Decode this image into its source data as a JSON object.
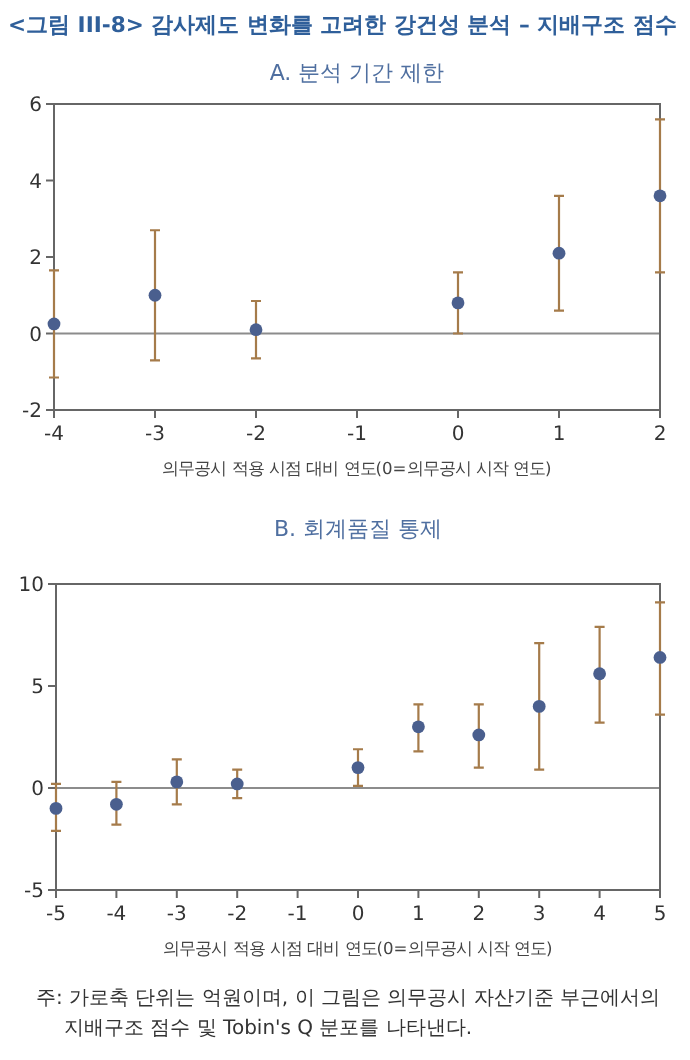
{
  "chart_data": [
    {
      "type": "scatter",
      "title": "<그림 III-8> 감사제도 변화를 고려한 강건성 분석 – 지배구조 점수",
      "subtitle": "A. 분석 기간 제한",
      "xlabel": "의무공시 적용 시점 대비 연도(0=의무공시 시작 연도)",
      "x": [
        -4,
        -3,
        -2,
        0,
        1,
        2
      ],
      "series": [
        {
          "color": "#4a5f8e",
          "values": [
            0.25,
            1.0,
            0.1,
            0.8,
            2.1,
            3.6
          ],
          "errors": [
            [
              -1.15,
              1.65
            ],
            [
              -0.7,
              2.7
            ],
            [
              -0.65,
              0.85
            ],
            [
              0.0,
              1.6
            ],
            [
              0.6,
              3.6
            ],
            [
              1.6,
              5.6
            ]
          ]
        }
      ],
      "xlim": [
        -4,
        2
      ],
      "xticks": [
        -4,
        -3,
        -2,
        -1,
        0,
        1,
        2
      ],
      "ylim": [
        -2,
        6
      ],
      "yticks": [
        -2,
        0,
        2,
        4,
        6
      ],
      "marker": "circle",
      "ref_lines": [
        {
          "axis": "y",
          "value": 0,
          "color": "#8c8c8c"
        }
      ]
    },
    {
      "type": "scatter",
      "subtitle": "B. 회계품질 통제",
      "xlabel": "의무공시 적용 시점 대비 연도(0=의무공시 시작 연도)",
      "x": [
        -5,
        -4,
        -3,
        -2,
        0,
        1,
        2,
        3,
        4,
        5
      ],
      "series": [
        {
          "color": "#4a5f8e",
          "values": [
            -1.0,
            -0.8,
            0.3,
            0.2,
            1.0,
            3.0,
            2.6,
            4.0,
            5.6,
            6.4
          ],
          "errors": [
            [
              -2.1,
              0.2
            ],
            [
              -1.8,
              0.3
            ],
            [
              -0.8,
              1.4
            ],
            [
              -0.5,
              0.9
            ],
            [
              0.1,
              1.9
            ],
            [
              1.8,
              4.1
            ],
            [
              1.0,
              4.1
            ],
            [
              0.9,
              7.1
            ],
            [
              3.2,
              7.9
            ],
            [
              3.6,
              9.1
            ]
          ]
        }
      ],
      "xlim": [
        -5,
        5
      ],
      "xticks": [
        -5,
        -4,
        -3,
        -2,
        -1,
        0,
        1,
        2,
        3,
        4,
        5
      ],
      "ylim": [
        -5,
        10
      ],
      "yticks": [
        -5,
        0,
        5,
        10
      ],
      "marker": "circle",
      "ref_lines": [
        {
          "axis": "y",
          "value": 0,
          "color": "#8c8c8c"
        }
      ],
      "annotations": [
        "주: 가로축 단위는 억원이며, 이 그림은 의무공시 자산기준 부근에서의 지배구조 점수 및 Tobin's Q 분포를 나타낸다."
      ]
    }
  ]
}
